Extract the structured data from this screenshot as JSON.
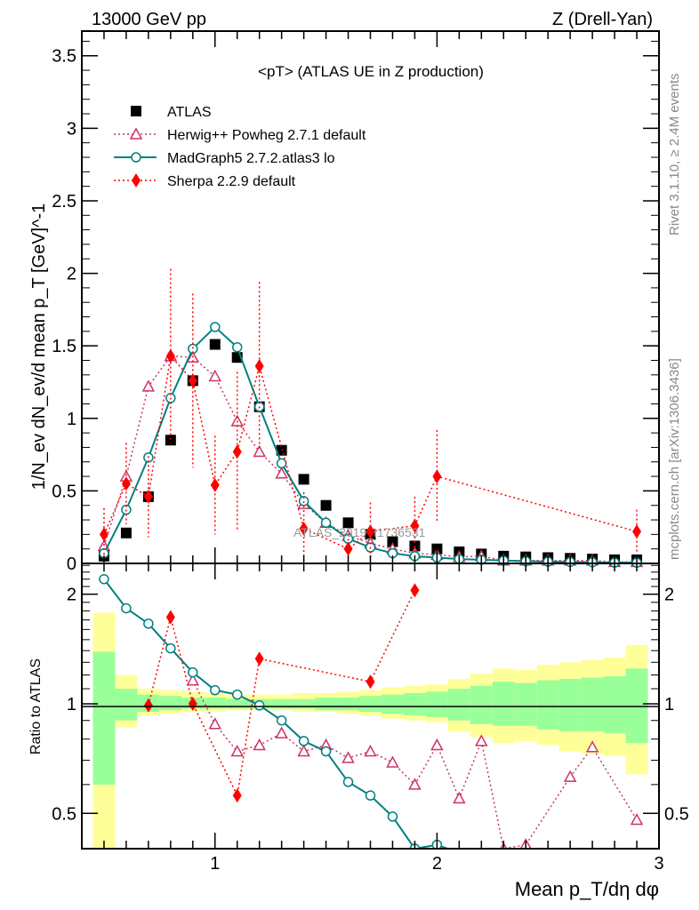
{
  "header": {
    "left": "13000 GeV pp",
    "right": "Z (Drell-Yan)"
  },
  "side": {
    "rivet": "Rivet 3.1.10, ≥ 2.4M events",
    "mcplots": "mcplots.cern.ch [arXiv:1306.3436]"
  },
  "chart_data": [
    {
      "type": "scatter",
      "title": "<pT> (ATLAS UE in Z production)",
      "ylabel": "1/N_ev dN_ev/d mean p_T [GeV]^-1",
      "xlabel": "Mean p_T/dη dφ",
      "watermark": "ATLAS_2019_I1736531",
      "xlim": [
        0.4,
        3.0
      ],
      "ylim": [
        0,
        3.67
      ],
      "yticks": [
        0,
        0.5,
        1,
        1.5,
        2,
        2.5,
        3,
        3.5
      ],
      "yticklabels": [
        "0",
        "0.5",
        "1",
        "1.5",
        "2",
        "2.5",
        "3",
        "3.5"
      ],
      "legend_position": "top-left",
      "series": [
        {
          "name": "ATLAS",
          "color": "#000000",
          "marker": "square",
          "x": [
            0.5,
            0.6,
            0.7,
            0.8,
            0.9,
            1.0,
            1.1,
            1.2,
            1.3,
            1.4,
            1.5,
            1.6,
            1.7,
            1.8,
            1.9,
            2.0,
            2.1,
            2.2,
            2.3,
            2.4,
            2.5,
            2.6,
            2.7,
            2.8,
            2.9
          ],
          "y": [
            0.05,
            0.21,
            0.46,
            0.85,
            1.26,
            1.51,
            1.42,
            1.08,
            0.78,
            0.58,
            0.4,
            0.28,
            0.2,
            0.15,
            0.12,
            0.1,
            0.08,
            0.065,
            0.05,
            0.045,
            0.04,
            0.035,
            0.03,
            0.025,
            0.025
          ]
        },
        {
          "name": "Herwig++ Powheg 2.7.1 default",
          "color": "#cc3366",
          "marker": "triangle",
          "line": "dotted",
          "x": [
            0.5,
            0.6,
            0.7,
            0.8,
            0.9,
            1.0,
            1.1,
            1.2,
            1.3,
            1.4,
            1.5,
            1.6,
            1.7,
            1.8,
            1.9,
            2.0,
            2.1,
            2.2,
            2.3,
            2.4,
            2.5,
            2.6,
            2.7,
            2.8,
            2.9
          ],
          "y": [
            0.12,
            0.6,
            1.22,
            1.43,
            1.42,
            1.29,
            0.98,
            0.77,
            0.62,
            0.41,
            0.28,
            0.19,
            0.14,
            0.1,
            0.07,
            0.06,
            0.045,
            0.05,
            0.02,
            0.02,
            0.02,
            0.02,
            0.02,
            0.01,
            0.01
          ]
        },
        {
          "name": "MadGraph5 2.7.2.atlas3 lo",
          "color": "#008080",
          "marker": "circle",
          "line": "solid",
          "x": [
            0.5,
            0.6,
            0.7,
            0.8,
            0.9,
            1.0,
            1.1,
            1.2,
            1.3,
            1.4,
            1.5,
            1.6,
            1.7,
            1.8,
            1.9,
            2.0,
            2.1,
            2.2,
            2.3,
            2.4,
            2.5,
            2.6,
            2.7,
            2.8,
            2.9
          ],
          "y": [
            0.07,
            0.37,
            0.73,
            1.14,
            1.48,
            1.63,
            1.49,
            1.08,
            0.69,
            0.43,
            0.28,
            0.17,
            0.11,
            0.07,
            0.05,
            0.04,
            0.03,
            0.025,
            0.02,
            0.015,
            0.012,
            0.01,
            0.008,
            0.006,
            0.005
          ]
        },
        {
          "name": "Sherpa 2.2.9 default",
          "color": "#ff0000",
          "marker": "diamond",
          "line": "dotted",
          "x": [
            0.5,
            0.6,
            0.7,
            0.8,
            0.9,
            1.0,
            1.1,
            1.2,
            1.4,
            1.6,
            1.7,
            1.9,
            2.0,
            2.9
          ],
          "y": [
            0.2,
            0.55,
            0.46,
            1.43,
            1.26,
            0.54,
            0.77,
            1.36,
            0.24,
            0.1,
            0.22,
            0.26,
            0.6,
            0.22
          ],
          "yerr": [
            0.18,
            0.28,
            0.28,
            0.6,
            0.6,
            0.34,
            0.55,
            0.58,
            0.25,
            0.1,
            0.2,
            0.2,
            0.32,
            0.15
          ]
        }
      ]
    },
    {
      "type": "line",
      "ylabel": "Ratio to ATLAS",
      "yscale": "log",
      "xlim": [
        0.4,
        3.0
      ],
      "ylim": [
        0.4,
        2.43
      ],
      "xticks": [
        1,
        2,
        3
      ],
      "xticklabels": [
        "1",
        "2",
        "3"
      ],
      "yticks": [
        0.5,
        1,
        2
      ],
      "yticklabels": [
        "0.5",
        "1",
        "2"
      ],
      "bands": {
        "x": [
          0.5,
          0.6,
          0.7,
          0.8,
          0.9,
          1.0,
          1.1,
          1.2,
          1.3,
          1.4,
          1.5,
          1.6,
          1.7,
          1.8,
          1.9,
          2.0,
          2.1,
          2.2,
          2.3,
          2.4,
          2.5,
          2.6,
          2.7,
          2.8,
          2.9
        ],
        "yellow_up": [
          1.78,
          1.2,
          1.1,
          1.09,
          1.08,
          1.07,
          1.06,
          1.06,
          1.06,
          1.07,
          1.07,
          1.08,
          1.09,
          1.11,
          1.12,
          1.13,
          1.17,
          1.21,
          1.25,
          1.24,
          1.28,
          1.3,
          1.32,
          1.34,
          1.45
        ],
        "yellow_down": [
          0.35,
          0.86,
          0.93,
          0.94,
          0.95,
          0.95,
          0.96,
          0.96,
          0.96,
          0.95,
          0.95,
          0.94,
          0.93,
          0.91,
          0.9,
          0.89,
          0.84,
          0.81,
          0.78,
          0.79,
          0.77,
          0.74,
          0.73,
          0.72,
          0.64
        ],
        "green_up": [
          1.39,
          1.1,
          1.06,
          1.05,
          1.04,
          1.04,
          1.03,
          1.03,
          1.03,
          1.03,
          1.04,
          1.04,
          1.05,
          1.06,
          1.07,
          1.08,
          1.1,
          1.12,
          1.15,
          1.14,
          1.16,
          1.17,
          1.18,
          1.19,
          1.25
        ],
        "green_down": [
          0.6,
          0.9,
          0.95,
          0.96,
          0.97,
          0.97,
          0.97,
          0.97,
          0.97,
          0.97,
          0.96,
          0.96,
          0.95,
          0.94,
          0.93,
          0.92,
          0.9,
          0.88,
          0.87,
          0.87,
          0.85,
          0.84,
          0.84,
          0.83,
          0.78
        ]
      },
      "series": [
        {
          "name": "Herwig++ Powheg 2.7.1 default",
          "color": "#cc3366",
          "marker": "triangle",
          "line": "dotted",
          "x": [
            0.9,
            1.0,
            1.1,
            1.2,
            1.3,
            1.4,
            1.5,
            1.6,
            1.7,
            1.8,
            1.9,
            2.0,
            2.1,
            2.2,
            2.3,
            2.4,
            2.6,
            2.7,
            2.9
          ],
          "y": [
            1.16,
            0.88,
            0.74,
            0.77,
            0.83,
            0.74,
            0.77,
            0.71,
            0.74,
            0.69,
            0.6,
            0.77,
            0.55,
            0.79,
            0.4,
            0.41,
            0.63,
            0.76,
            0.48
          ]
        },
        {
          "name": "MadGraph5 2.7.2.atlas3 lo",
          "color": "#008080",
          "marker": "circle",
          "line": "solid",
          "x": [
            0.5,
            0.6,
            0.7,
            0.8,
            0.9,
            1.0,
            1.1,
            1.2,
            1.3,
            1.4,
            1.5,
            1.6,
            1.7,
            1.8,
            1.9,
            2.0,
            2.2,
            2.3
          ],
          "y": [
            2.2,
            1.83,
            1.66,
            1.42,
            1.22,
            1.09,
            1.06,
            0.99,
            0.9,
            0.79,
            0.74,
            0.61,
            0.56,
            0.49,
            0.4,
            0.41,
            0.37,
            0.37
          ]
        },
        {
          "name": "Sherpa 2.2.9 default",
          "color": "#ff0000",
          "marker": "diamond",
          "line": "dotted",
          "x": [
            0.7,
            0.8,
            0.9,
            1.1,
            1.2,
            1.7,
            1.9
          ],
          "y": [
            0.99,
            1.73,
            1.0,
            0.56,
            1.33,
            1.15,
            2.05
          ]
        }
      ]
    }
  ]
}
